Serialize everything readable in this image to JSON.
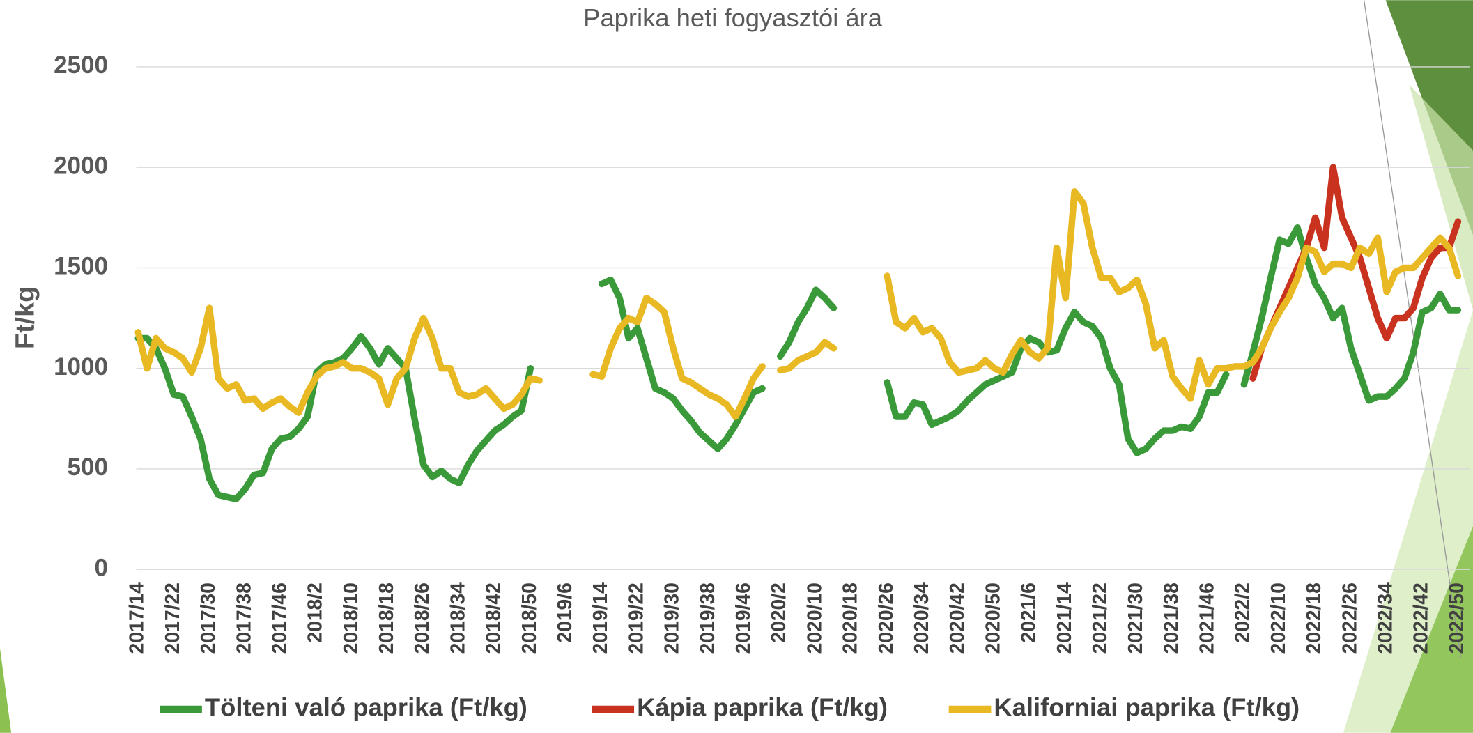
{
  "chart_data": {
    "type": "line",
    "title": "Paprika heti fogyasztói ára",
    "y_label": "Ft/kg",
    "categories": [
      "2017/14",
      null,
      null,
      null,
      "2017/22",
      null,
      null,
      null,
      "2017/30",
      null,
      null,
      null,
      "2017/38",
      null,
      null,
      null,
      "2017/46",
      null,
      null,
      null,
      "2018/2",
      null,
      null,
      null,
      "2018/10",
      null,
      null,
      null,
      "2018/18",
      null,
      null,
      null,
      "2018/26",
      null,
      null,
      null,
      "2018/34",
      null,
      null,
      null,
      "2018/42",
      null,
      null,
      null,
      "2018/50",
      null,
      null,
      null,
      "2019/6",
      null,
      null,
      null,
      "2019/14",
      null,
      null,
      null,
      "2019/22",
      null,
      null,
      null,
      "2019/30",
      null,
      null,
      null,
      "2019/38",
      null,
      null,
      null,
      "2019/46",
      null,
      null,
      null,
      "2020/2",
      null,
      null,
      null,
      "2020/10",
      null,
      null,
      null,
      "2020/18",
      null,
      null,
      null,
      "2020/26",
      null,
      null,
      null,
      "2020/34",
      null,
      null,
      null,
      "2020/42",
      null,
      null,
      null,
      "2020/50",
      null,
      null,
      null,
      "2021/6",
      null,
      null,
      null,
      "2021/14",
      null,
      null,
      null,
      "2021/22",
      null,
      null,
      null,
      "2021/30",
      null,
      null,
      null,
      "2021/38",
      null,
      null,
      null,
      "2021/46",
      null,
      null,
      null,
      "2022/2",
      null,
      null,
      null,
      "2022/10",
      null,
      null,
      null,
      "2022/18",
      null,
      null,
      null,
      "2022/26",
      null,
      null,
      null,
      "2022/34",
      null,
      null,
      null,
      "2022/42",
      null,
      null,
      null,
      "2022/50"
    ],
    "series": [
      {
        "name": "Tölteni való paprika (Ft/kg)",
        "color": "#3a9a3a",
        "values": [
          1150,
          1150,
          1100,
          1000,
          870,
          860,
          760,
          650,
          450,
          370,
          360,
          350,
          400,
          470,
          480,
          600,
          650,
          660,
          700,
          760,
          980,
          1020,
          1030,
          1050,
          1100,
          1160,
          1100,
          1020,
          1100,
          1050,
          1000,
          750,
          520,
          460,
          490,
          450,
          430,
          520,
          590,
          640,
          690,
          720,
          760,
          790,
          1000,
          null,
          null,
          null,
          null,
          null,
          null,
          null,
          1420,
          1440,
          1350,
          1150,
          1200,
          1050,
          900,
          880,
          850,
          790,
          740,
          680,
          640,
          600,
          650,
          720,
          800,
          880,
          900,
          null,
          1060,
          1130,
          1230,
          1300,
          1390,
          1350,
          1300,
          null,
          null,
          null,
          null,
          null,
          930,
          760,
          760,
          830,
          820,
          720,
          740,
          760,
          790,
          840,
          880,
          920,
          940,
          960,
          980,
          1100,
          1150,
          1130,
          1080,
          1090,
          1200,
          1280,
          1230,
          1210,
          1150,
          1000,
          920,
          650,
          580,
          600,
          650,
          690,
          690,
          710,
          700,
          760,
          880,
          880,
          970,
          null,
          920,
          1080,
          1250,
          1450,
          1640,
          1620,
          1700,
          1550,
          1420,
          1350,
          1250,
          1300,
          1100,
          970,
          840,
          860,
          860,
          900,
          950,
          1080,
          1280,
          1300,
          1370,
          1290,
          1290
        ]
      },
      {
        "name": "Kápia paprika (Ft/kg)",
        "color": "#c8321e",
        "values": [
          null,
          null,
          null,
          null,
          null,
          null,
          null,
          null,
          null,
          null,
          null,
          null,
          null,
          null,
          null,
          null,
          null,
          null,
          null,
          null,
          null,
          null,
          null,
          null,
          null,
          null,
          null,
          null,
          null,
          null,
          null,
          null,
          null,
          null,
          null,
          null,
          null,
          null,
          null,
          null,
          null,
          null,
          null,
          null,
          null,
          null,
          null,
          null,
          null,
          null,
          null,
          null,
          null,
          null,
          null,
          null,
          null,
          null,
          null,
          null,
          null,
          null,
          null,
          null,
          null,
          null,
          null,
          null,
          null,
          null,
          null,
          null,
          null,
          null,
          null,
          null,
          null,
          null,
          null,
          null,
          null,
          null,
          null,
          null,
          null,
          null,
          null,
          null,
          null,
          null,
          null,
          null,
          null,
          null,
          null,
          null,
          null,
          null,
          null,
          null,
          null,
          null,
          null,
          null,
          null,
          null,
          null,
          null,
          null,
          null,
          null,
          null,
          null,
          null,
          null,
          null,
          null,
          null,
          null,
          null,
          null,
          null,
          null,
          null,
          null,
          950,
          1100,
          1200,
          1300,
          1400,
          1500,
          1600,
          1750,
          1600,
          2000,
          1750,
          1650,
          1550,
          1400,
          1250,
          1150,
          1250,
          1250,
          1300,
          1450,
          1550,
          1600,
          1600,
          1730
        ]
      },
      {
        "name": "Kaliforniai paprika (Ft/kg)",
        "color": "#e8b923",
        "values": [
          1180,
          1000,
          1150,
          1100,
          1080,
          1050,
          980,
          1100,
          1300,
          950,
          900,
          920,
          840,
          850,
          800,
          830,
          850,
          810,
          780,
          880,
          960,
          1000,
          1010,
          1030,
          1000,
          1000,
          980,
          950,
          820,
          950,
          1000,
          1150,
          1250,
          1150,
          1000,
          1000,
          880,
          860,
          870,
          900,
          850,
          800,
          820,
          870,
          950,
          940,
          null,
          null,
          null,
          null,
          null,
          970,
          960,
          1100,
          1200,
          1250,
          1230,
          1350,
          1320,
          1280,
          1100,
          950,
          930,
          900,
          870,
          850,
          820,
          760,
          850,
          950,
          1010,
          null,
          990,
          1000,
          1040,
          1060,
          1080,
          1130,
          1100,
          null,
          null,
          null,
          null,
          null,
          1460,
          1230,
          1200,
          1250,
          1180,
          1200,
          1150,
          1030,
          980,
          990,
          1000,
          1040,
          1000,
          980,
          1070,
          1140,
          1080,
          1050,
          1100,
          1600,
          1350,
          1880,
          1820,
          1600,
          1450,
          1450,
          1380,
          1400,
          1440,
          1320,
          1100,
          1140,
          960,
          900,
          850,
          1040,
          920,
          1000,
          1000,
          1010,
          1010,
          1030,
          1100,
          1200,
          1280,
          1350,
          1450,
          1600,
          1580,
          1480,
          1520,
          1520,
          1500,
          1600,
          1570,
          1650,
          1380,
          1480,
          1500,
          1500,
          1550,
          1600,
          1650,
          1600,
          1460
        ]
      }
    ],
    "ylim": [
      0,
      2500
    ],
    "yticks": [
      0,
      500,
      1000,
      1500,
      2000,
      2500
    ],
    "grid": true,
    "legend": "bottom"
  }
}
